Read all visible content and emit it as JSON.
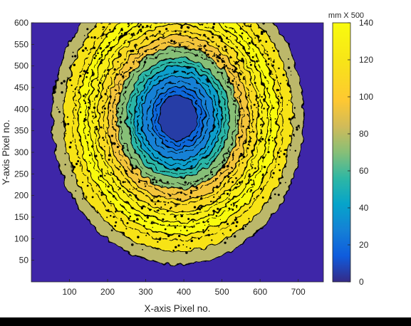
{
  "chart_data": {
    "type": "heatmap",
    "title": "",
    "xlabel": "X-axis Pixel no.",
    "ylabel": "Y-axis Pixel no.",
    "xlim": [
      0,
      766
    ],
    "ylim": [
      0,
      600
    ],
    "xticks": [
      100,
      200,
      300,
      400,
      500,
      600,
      700
    ],
    "yticks": [
      50,
      100,
      150,
      200,
      250,
      300,
      350,
      400,
      450,
      500,
      550,
      600
    ],
    "colorbar": {
      "title": "mm X 500",
      "range": [
        0,
        140
      ],
      "ticks": [
        0,
        20,
        40,
        60,
        80,
        100,
        120,
        140
      ],
      "colormap": "parula"
    },
    "center": {
      "x": 385,
      "y": 380
    },
    "rings": [
      {
        "radius": 0,
        "value": 3
      },
      {
        "radius": 50,
        "value": 5
      },
      {
        "radius": 70,
        "value": 18
      },
      {
        "radius": 95,
        "value": 28
      },
      {
        "radius": 115,
        "value": 40
      },
      {
        "radius": 135,
        "value": 55
      },
      {
        "radius": 160,
        "value": 70
      },
      {
        "radius": 185,
        "value": 95
      },
      {
        "radius": 210,
        "value": 112
      },
      {
        "radius": 235,
        "value": 128
      },
      {
        "radius": 262,
        "value": 140
      },
      {
        "radius": 300,
        "value": 118
      },
      {
        "radius": 330,
        "value": 0
      }
    ],
    "background_value": 0,
    "grid": false
  },
  "colors": {
    "background": "#3e26a8",
    "ring_outline": "#000000",
    "outer_band": "#bcb86a",
    "yellow": "#f9fb0e"
  }
}
